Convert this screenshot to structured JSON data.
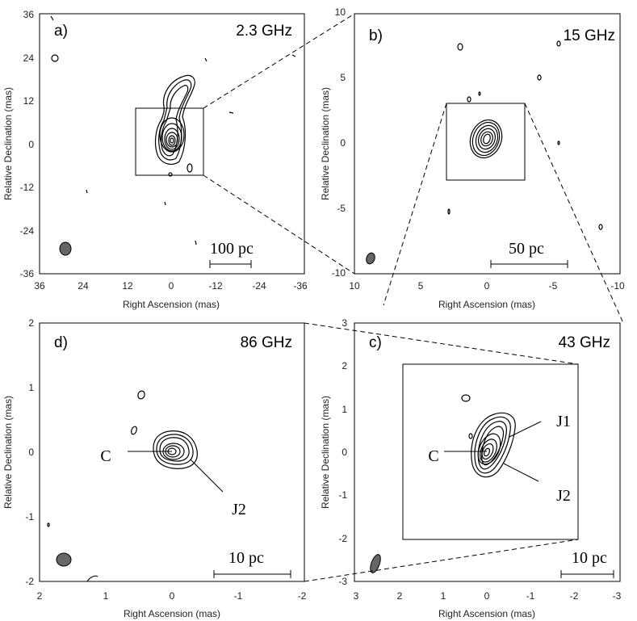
{
  "panels": [
    {
      "id": "a",
      "panel_label": "a)",
      "frequency": "2.3 GHz",
      "xlabel": "Right Ascension (mas)",
      "ylabel": "Relative Declination (mas)",
      "xticks": [
        "36",
        "24",
        "12",
        "0",
        "-12",
        "-24",
        "-36"
      ],
      "yticks": [
        "36",
        "24",
        "12",
        "0",
        "-12",
        "-24",
        "-36"
      ],
      "scalebar": "100 pc"
    },
    {
      "id": "b",
      "panel_label": "b)",
      "frequency": "15 GHz",
      "xlabel": "Right Ascension (mas)",
      "ylabel": "Relative Declination (mas)",
      "xticks": [
        "10",
        "5",
        "0",
        "-5",
        "-10"
      ],
      "yticks": [
        "10",
        "5",
        "0",
        "-5",
        "-10"
      ],
      "scalebar": "50 pc"
    },
    {
      "id": "d",
      "panel_label": "d)",
      "frequency": "86 GHz",
      "xlabel": "Right Ascension (mas)",
      "ylabel": "Relative Declination (mas)",
      "xticks": [
        "2",
        "1",
        "0",
        "-1",
        "-2"
      ],
      "yticks": [
        "2",
        "1",
        "0",
        "-1",
        "-2"
      ],
      "scalebar": "10 pc",
      "components": [
        "C",
        "J2"
      ]
    },
    {
      "id": "c",
      "panel_label": "c)",
      "frequency": "43 GHz",
      "xlabel": "Right Ascension (mas)",
      "ylabel": "Relative Declination (mas)",
      "xticks": [
        "3",
        "2",
        "1",
        "0",
        "-1",
        "-2",
        "-3"
      ],
      "yticks": [
        "3",
        "2",
        "1",
        "0",
        "-1",
        "-2",
        "-3"
      ],
      "scalebar": "10 pc",
      "components": [
        "C",
        "J1",
        "J2"
      ]
    }
  ]
}
